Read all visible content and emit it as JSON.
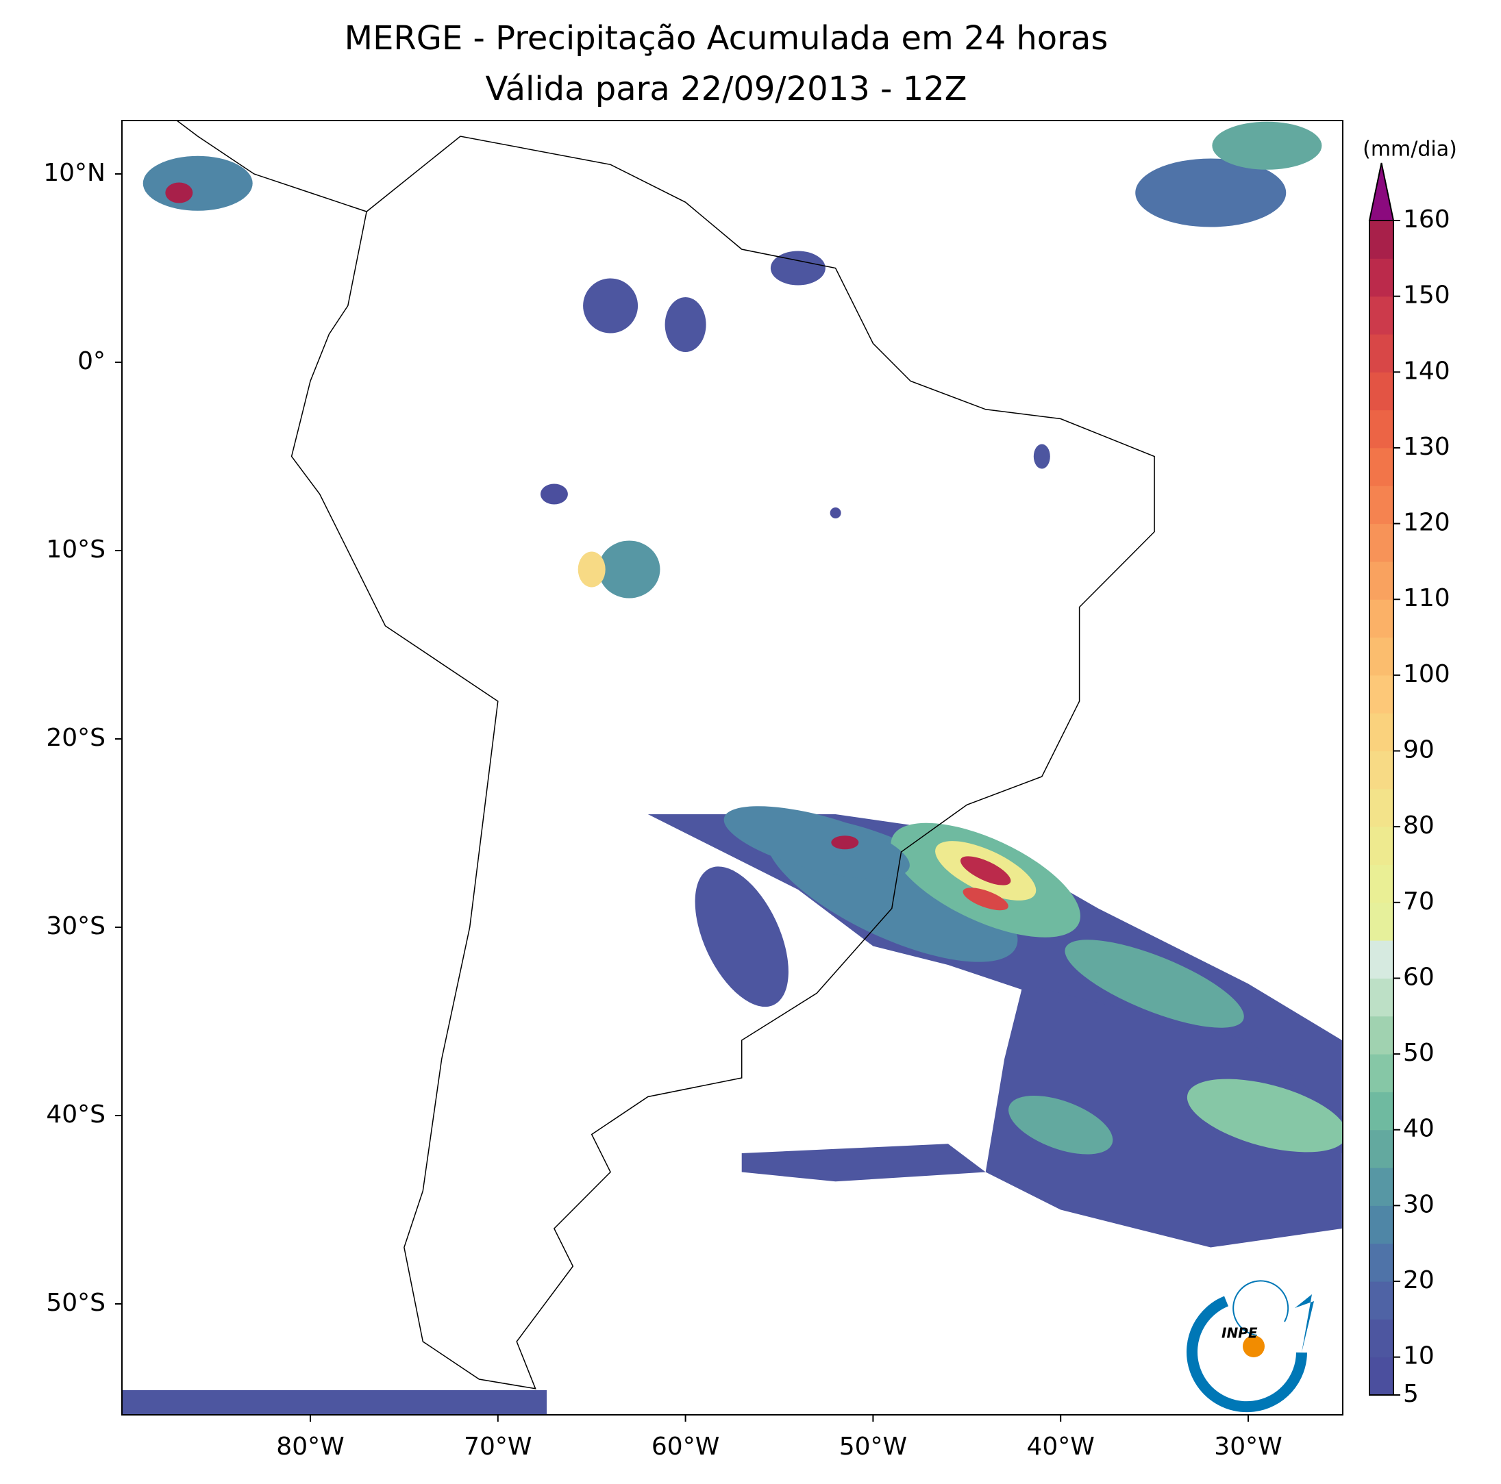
{
  "map": {
    "title": "MERGE - Precipitação Acumulada em 24 horas",
    "subtitle": "Válida para 22/09/2013 - 12Z",
    "lon_ticks": [
      {
        "value": -80,
        "label": "80°W"
      },
      {
        "value": -70,
        "label": "70°W"
      },
      {
        "value": -60,
        "label": "60°W"
      },
      {
        "value": -50,
        "label": "50°W"
      },
      {
        "value": -40,
        "label": "40°W"
      },
      {
        "value": -30,
        "label": "30°W"
      }
    ],
    "lat_ticks": [
      {
        "value": 10,
        "label": "10°N"
      },
      {
        "value": 0,
        "label": "0°"
      },
      {
        "value": -10,
        "label": "10°S"
      },
      {
        "value": -20,
        "label": "20°S"
      },
      {
        "value": -30,
        "label": "30°S"
      },
      {
        "value": -40,
        "label": "40°S"
      },
      {
        "value": -50,
        "label": "50°S"
      }
    ],
    "colorbar": {
      "unit": "(mm/dia)",
      "ylim": [
        5,
        160
      ],
      "yticks": [
        5,
        10,
        20,
        30,
        40,
        50,
        60,
        70,
        80,
        90,
        100,
        110,
        120,
        130,
        140,
        150,
        160
      ],
      "levels": [
        5,
        10,
        15,
        20,
        25,
        30,
        35,
        40,
        45,
        50,
        55,
        60,
        65,
        70,
        75,
        80,
        85,
        90,
        95,
        100,
        105,
        110,
        115,
        120,
        125,
        130,
        135,
        140,
        145,
        150,
        155,
        160
      ],
      "colors": [
        "#4b4f9e",
        "#4d56a0",
        "#4f63a5",
        "#4f73a8",
        "#4f86a6",
        "#5797a4",
        "#63a99f",
        "#6fbaa0",
        "#86c7a6",
        "#a0d2b0",
        "#bde0c6",
        "#d6eae0",
        "#e6f09b",
        "#eaef95",
        "#eeea8f",
        "#f3e38a",
        "#f7da85",
        "#fad27d",
        "#fdc878",
        "#fbbd6e",
        "#fbb167",
        "#f9a25f",
        "#f79358",
        "#f58350",
        "#f27549",
        "#ec6445",
        "#e35444",
        "#d84747",
        "#cc3a4b",
        "#bb2a4b",
        "#a8204a"
      ],
      "extend_color": "#8b0a7e"
    },
    "logo": "INPE"
  }
}
